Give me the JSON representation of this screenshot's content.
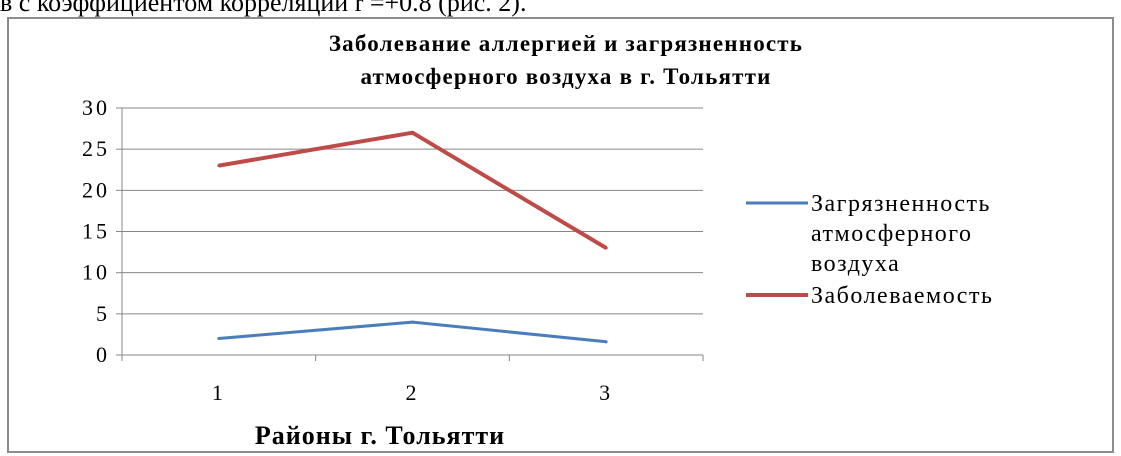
{
  "top_text": "в с коэффициентом корреляции r =+0.8 (рис. 2).",
  "chart_data": {
    "type": "line",
    "title_lines": [
      "Заболевание аллергией и загрязненность",
      "атмосферного воздуха в г. Тольятти"
    ],
    "xlabel": "Районы г. Тольятти",
    "ylabel": "",
    "categories": [
      "1",
      "2",
      "3"
    ],
    "ylim": [
      0,
      30
    ],
    "yticks": [
      0,
      5,
      10,
      15,
      20,
      25,
      30
    ],
    "grid": true,
    "legend_position": "right",
    "series": [
      {
        "name": "Загрязненность атмосферного воздуха",
        "legend_lines": [
          "Загрязненность",
          "атмосферного",
          "воздуха"
        ],
        "color": "#4a7ebb",
        "values": [
          2,
          4,
          1.6
        ]
      },
      {
        "name": "Заболеваемость",
        "legend_lines": [
          "Заболеваемость"
        ],
        "color": "#be4b48",
        "values": [
          23,
          27,
          13
        ]
      }
    ]
  }
}
